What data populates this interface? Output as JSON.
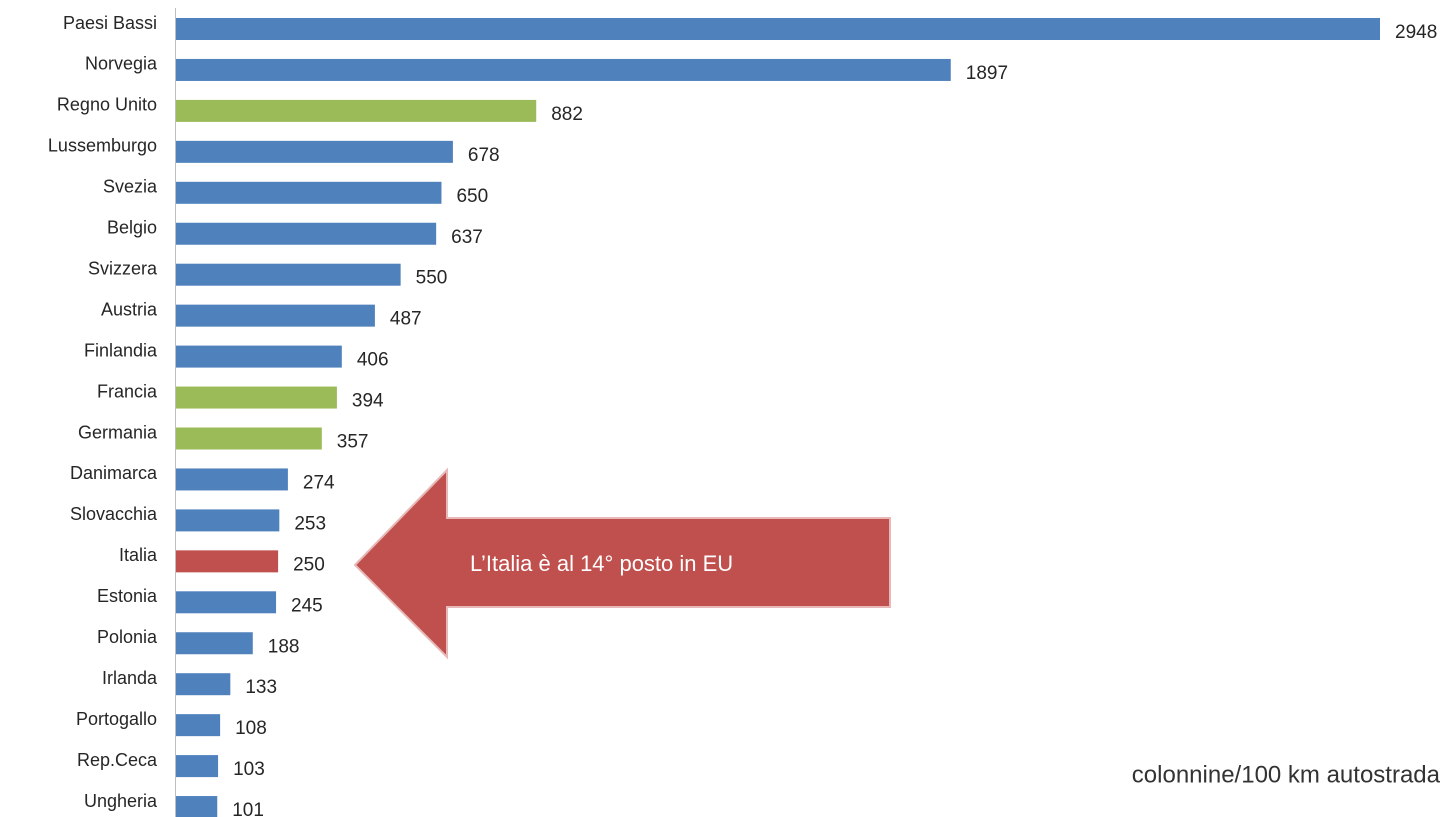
{
  "chart_data": {
    "type": "hbar",
    "categories": [
      "Paesi Bassi",
      "Norvegia",
      "Regno Unito",
      "Lussemburgo",
      "Svezia",
      "Belgio",
      "Svizzera",
      "Austria",
      "Finlandia",
      "Francia",
      "Germania",
      "Danimarca",
      "Slovacchia",
      "Italia",
      "Estonia",
      "Polonia",
      "Irlanda",
      "Portogallo",
      "Rep.Ceca",
      "Ungheria"
    ],
    "values": [
      2948,
      1897,
      882,
      678,
      650,
      637,
      550,
      487,
      406,
      394,
      357,
      274,
      253,
      250,
      245,
      188,
      133,
      108,
      103,
      101
    ],
    "colors": [
      "#4f81bd",
      "#4f81bd",
      "#9bbb59",
      "#4f81bd",
      "#4f81bd",
      "#4f81bd",
      "#4f81bd",
      "#4f81bd",
      "#4f81bd",
      "#9bbb59",
      "#9bbb59",
      "#4f81bd",
      "#4f81bd",
      "#c0504d",
      "#4f81bd",
      "#4f81bd",
      "#4f81bd",
      "#4f81bd",
      "#4f81bd",
      "#4f81bd"
    ],
    "annotation": "L’Italia è al 14°    posto in EU",
    "unit_label": "colonnine/100 km autostrada"
  }
}
